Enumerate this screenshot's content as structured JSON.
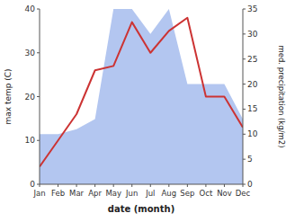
{
  "chart_data": {
    "type": "line",
    "categories": [
      "Jan",
      "Feb",
      "Mar",
      "Apr",
      "May",
      "Jun",
      "Jul",
      "Aug",
      "Sep",
      "Oct",
      "Nov",
      "Dec"
    ],
    "series": [
      {
        "type": "area",
        "axis": "y2",
        "color": "#b3c6f0",
        "values": [
          10,
          10,
          11,
          13,
          35,
          35,
          30,
          35,
          20,
          20,
          20,
          13
        ]
      },
      {
        "type": "line",
        "color": "#cc3333",
        "values": [
          4,
          10,
          16,
          26,
          27,
          37,
          30,
          35,
          38,
          20,
          20,
          13
        ]
      }
    ],
    "xlabel": "date (month)",
    "ylabel": "max temp (C)",
    "y2label": "med. precipitation (kg/m2)",
    "ylim": [
      0,
      40
    ],
    "yticks": [
      0,
      10,
      20,
      30,
      40
    ],
    "y2lim": [
      0,
      35
    ],
    "y2ticks": [
      0,
      5,
      10,
      15,
      20,
      25,
      30,
      35
    ],
    "grid": false
  }
}
